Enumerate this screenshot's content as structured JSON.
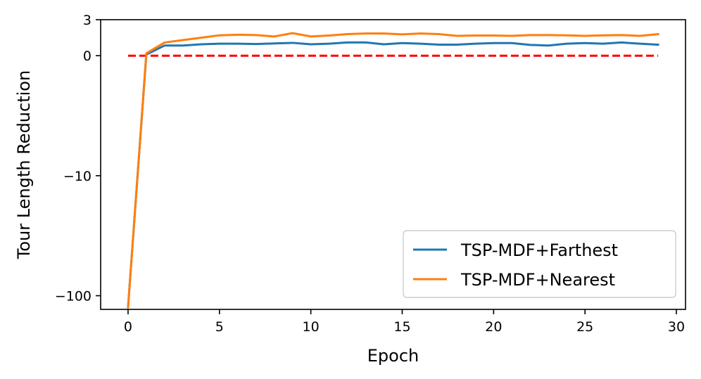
{
  "chart_data": {
    "type": "line",
    "title": "",
    "xlabel": "Epoch",
    "ylabel": "Tour Length Reduction",
    "y_scale": "symlog",
    "xlim": [
      -1.5,
      30.5
    ],
    "ylim": [
      -130,
      3
    ],
    "x_ticks": [
      0,
      5,
      10,
      15,
      20,
      25,
      30
    ],
    "x_tick_labels": [
      "0",
      "5",
      "10",
      "15",
      "20",
      "25",
      "30"
    ],
    "y_ticks": [
      3,
      0,
      -10,
      -100
    ],
    "y_tick_labels": [
      "3",
      "0",
      "−10",
      "−100"
    ],
    "grid": false,
    "legend_position": "lower-right",
    "x": [
      0,
      1,
      2,
      3,
      4,
      5,
      6,
      7,
      8,
      9,
      10,
      11,
      12,
      13,
      14,
      15,
      16,
      17,
      18,
      19,
      20,
      21,
      22,
      23,
      24,
      25,
      26,
      27,
      28,
      29
    ],
    "series": [
      {
        "name": "TSP-MDF+Farthest",
        "color": "#1f77b4",
        "values": [
          -125,
          0.1,
          0.85,
          0.85,
          0.95,
          1.0,
          1.0,
          0.97,
          1.02,
          1.07,
          0.95,
          1.0,
          1.1,
          1.1,
          0.95,
          1.05,
          1.0,
          0.92,
          0.92,
          1.0,
          1.05,
          1.05,
          0.9,
          0.85,
          1.0,
          1.05,
          1.0,
          1.1,
          1.0,
          0.92
        ]
      },
      {
        "name": "TSP-MDF+Nearest",
        "color": "#ff7f0e",
        "values": [
          -125,
          0.2,
          1.1,
          1.3,
          1.5,
          1.7,
          1.75,
          1.72,
          1.6,
          1.88,
          1.6,
          1.68,
          1.8,
          1.85,
          1.85,
          1.78,
          1.85,
          1.8,
          1.65,
          1.68,
          1.68,
          1.65,
          1.72,
          1.72,
          1.7,
          1.65,
          1.7,
          1.72,
          1.65,
          1.8
        ]
      }
    ],
    "reference_line": {
      "y": 0,
      "color": "#ff0000",
      "style": "dashed"
    }
  }
}
